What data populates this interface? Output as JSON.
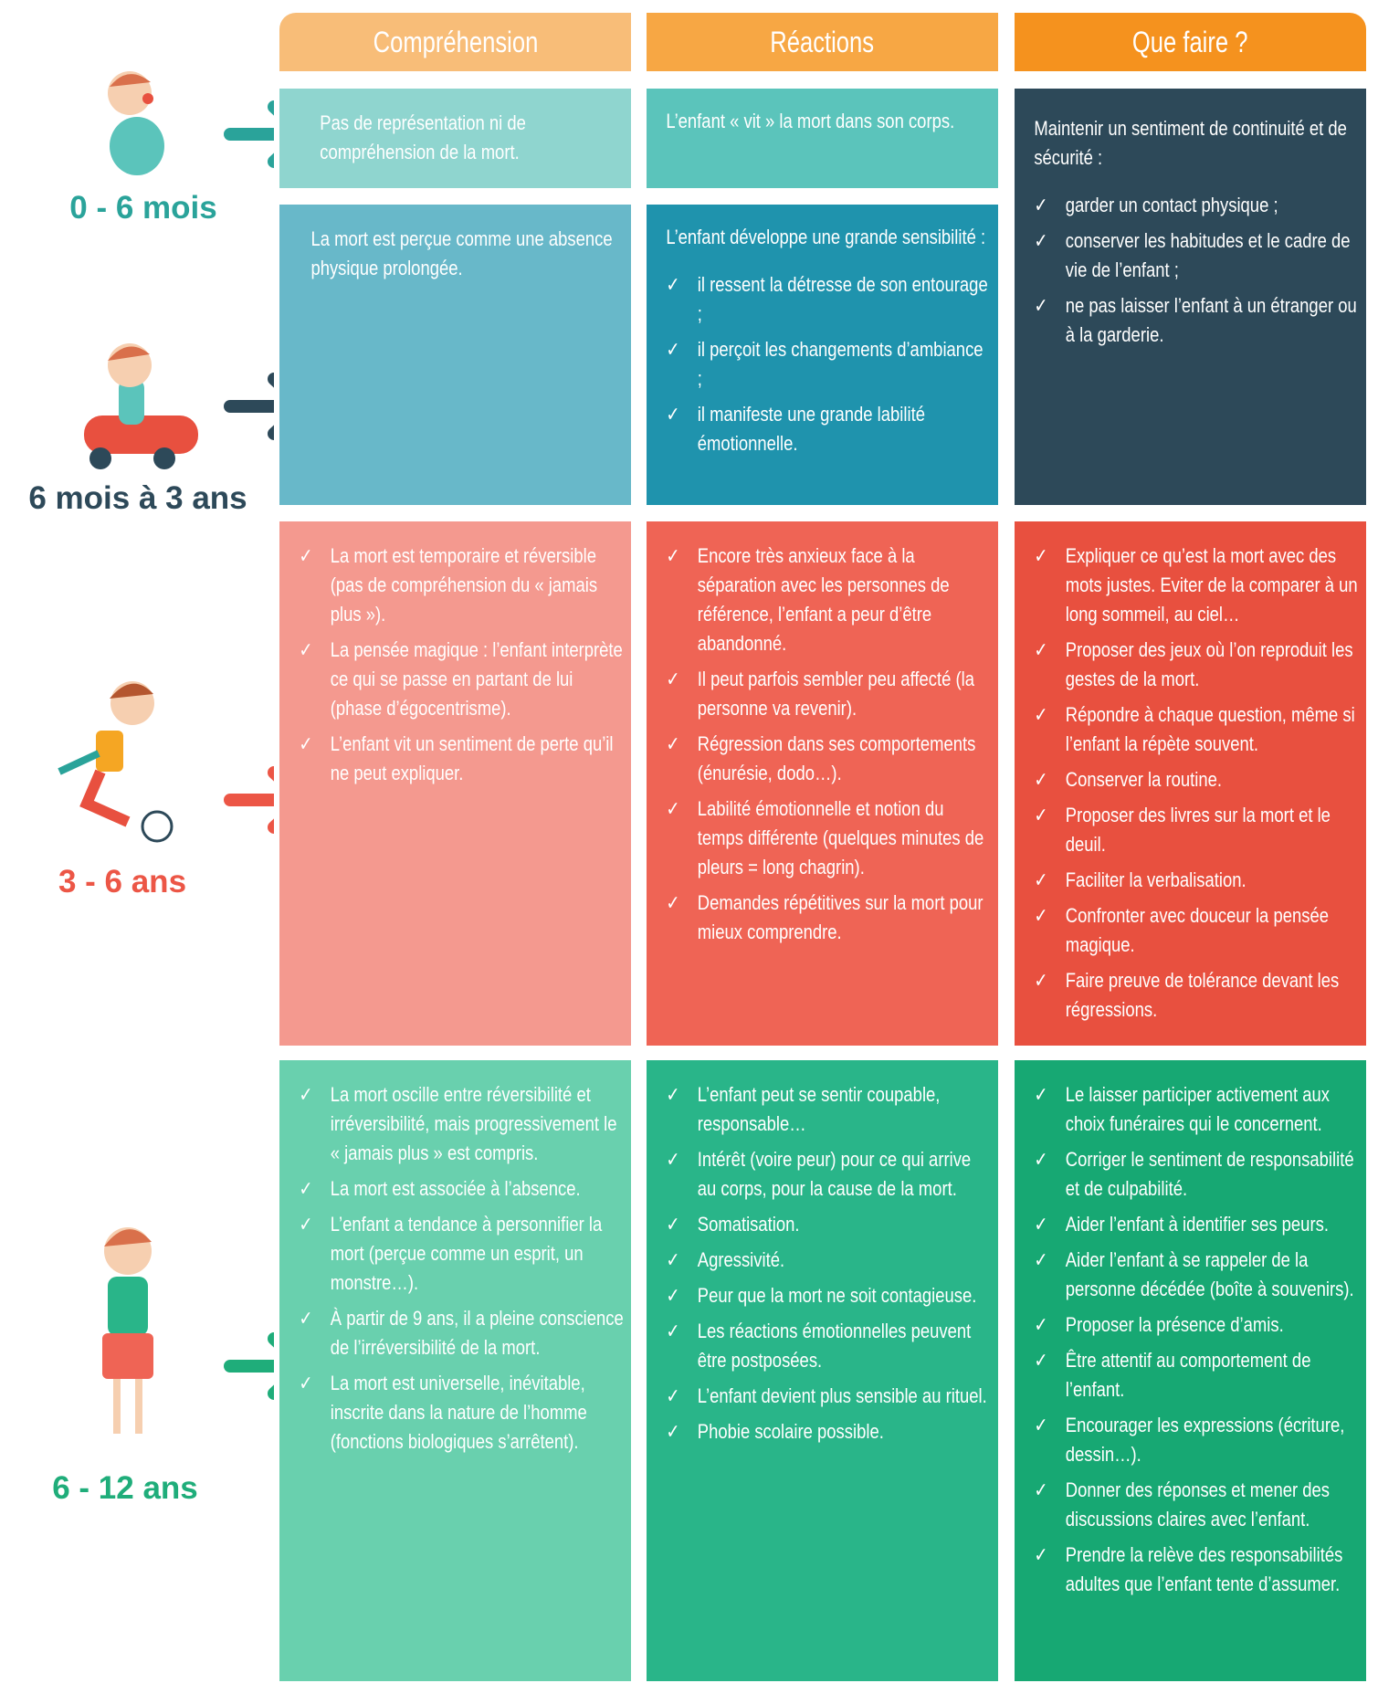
{
  "headers": [
    "Compréhension",
    "Réactions",
    "Que faire ?"
  ],
  "rows": [
    {
      "age": "0 - 6 mois",
      "cells": [
        {
          "text": "Pas de représentation ni de compréhension de la mort."
        },
        {
          "text": "L’enfant « vit » la mort dans son corps."
        },
        {
          "text": "Maintenir un sentiment de continuité et de sécurité :",
          "items": [
            "garder un contact physique ;",
            "conserver les habitudes et le cadre de vie de l’enfant ;",
            "ne pas laisser l’enfant à un étranger ou à la garderie."
          ]
        }
      ]
    },
    {
      "age": "6 mois à 3 ans",
      "cells": [
        {
          "text": "La mort est perçue comme une absence physique prolongée."
        },
        {
          "text": "L’enfant développe une grande sensibilité :",
          "items": [
            "il ressent la détresse de son entourage ;",
            "il perçoit les changements d’ambiance ;",
            "il manifeste une grande labilité émotionnelle."
          ]
        }
      ]
    },
    {
      "age": "3 - 6 ans",
      "cells": [
        {
          "items": [
            "La mort est temporaire et réversible (pas de compréhension du « jamais plus »).",
            "La pensée magique : l’enfant interprète ce qui se passe en partant de lui (phase d’égocentrisme).",
            "L’enfant vit un sentiment de perte qu’il ne peut expliquer."
          ]
        },
        {
          "items": [
            "Encore très anxieux face à la séparation avec les personnes de référence, l’enfant a peur d’être abandonné.",
            "Il peut parfois sembler peu affecté (la personne va revenir).",
            "Régression dans ses comportements (énurésie, dodo…).",
            "Labilité émotionnelle et notion du temps différente (quelques minutes de pleurs = long chagrin).",
            "Demandes répétitives sur la mort pour mieux comprendre."
          ]
        },
        {
          "items": [
            "Expliquer ce qu’est la mort avec des mots justes. Eviter de la comparer à un long sommeil, au ciel…",
            "Proposer des jeux où l’on reproduit les gestes de la mort.",
            "Répondre à chaque question, même si l’enfant la répète souvent.",
            "Conserver la routine.",
            "Proposer des livres sur la mort et le deuil.",
            "Faciliter la verbalisation.",
            "Confronter avec douceur la pensée magique.",
            "Faire preuve de tolérance devant les régressions."
          ]
        }
      ]
    },
    {
      "age": "6 - 12 ans",
      "cells": [
        {
          "items": [
            "La mort oscille entre réversibilité et irréversibilité, mais progressivement le « jamais plus » est compris.",
            "La mort est associée à l’absence.",
            "L’enfant a tendance à personnifier la mort (perçue comme un esprit, un monstre…).",
            "À partir de 9 ans, il a pleine conscience de l’irréversibilité de la mort.",
            "La mort est universelle, inévitable, inscrite dans la nature de l’homme (fonctions biologiques s’arrêtent)."
          ]
        },
        {
          "items": [
            "L’enfant peut se sentir coupable, responsable…",
            "Intérêt (voire peur) pour ce qui arrive au corps, pour la cause de la mort.",
            "Somatisation.",
            "Agressivité.",
            "Peur que la mort ne soit contagieuse.",
            "Les réactions émotionnelles peuvent être postposées.",
            "L’enfant devient plus sensible au rituel.",
            "Phobie scolaire possible."
          ]
        },
        {
          "items": [
            "Le laisser participer activement aux choix funéraires qui le concernent.",
            "Corriger le sentiment de responsabilité et de culpabilité.",
            "Aider l’enfant à identifier ses peurs.",
            "Aider l’enfant à se rappeler de la personne décédée (boîte à souvenirs).",
            "Proposer la présence d’amis.",
            "Être attentif au comportement de l’enfant.",
            "Encourager les expressions (écriture, dessin…).",
            "Donner des réponses et mener des discussions claires avec l’enfant.",
            "Prendre la relève des responsabilités adultes que l’enfant tente d’assumer."
          ]
        }
      ]
    }
  ]
}
